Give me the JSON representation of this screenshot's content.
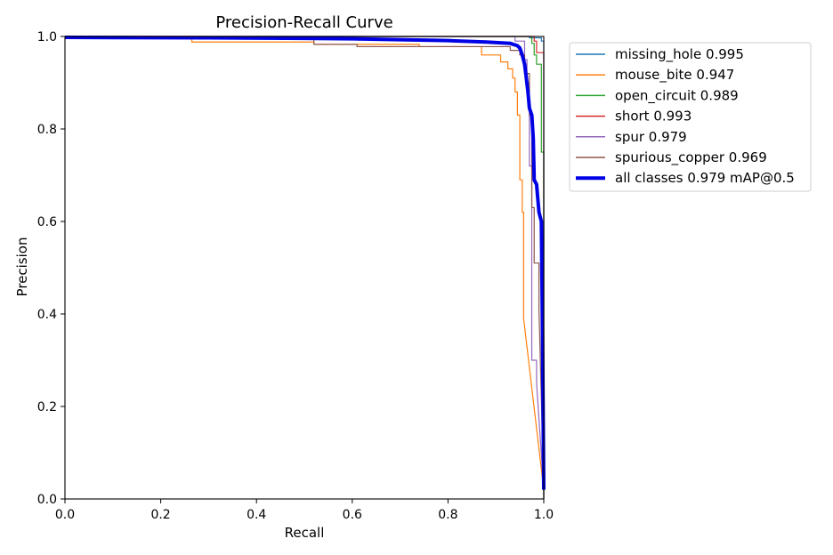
{
  "chart_data": {
    "type": "line",
    "title": "Precision-Recall Curve",
    "xlabel": "Recall",
    "ylabel": "Precision",
    "xlim": [
      0,
      1
    ],
    "ylim": [
      0,
      1
    ],
    "xticks": [
      "0.0",
      "0.2",
      "0.4",
      "0.6",
      "0.8",
      "1.0"
    ],
    "yticks": [
      "0.0",
      "0.2",
      "0.4",
      "0.6",
      "0.8",
      "1.0"
    ],
    "grid": false,
    "legend_position": "outside-right-top",
    "series": [
      {
        "name": "missing_hole 0.995",
        "color": "#1f77b4",
        "width": 1.2,
        "points": [
          [
            0,
            1
          ],
          [
            0.97,
            1
          ],
          [
            0.97,
            0.997
          ],
          [
            0.995,
            0.997
          ],
          [
            0.995,
            0.99
          ],
          [
            1.0,
            0.99
          ],
          [
            1.0,
            0
          ]
        ]
      },
      {
        "name": "mouse_bite 0.947",
        "color": "#ff7f0e",
        "width": 1.2,
        "points": [
          [
            0,
            1
          ],
          [
            0.265,
            1
          ],
          [
            0.265,
            0.988
          ],
          [
            0.52,
            0.988
          ],
          [
            0.52,
            0.983
          ],
          [
            0.74,
            0.983
          ],
          [
            0.74,
            0.978
          ],
          [
            0.87,
            0.978
          ],
          [
            0.87,
            0.96
          ],
          [
            0.91,
            0.96
          ],
          [
            0.91,
            0.945
          ],
          [
            0.925,
            0.945
          ],
          [
            0.925,
            0.93
          ],
          [
            0.935,
            0.93
          ],
          [
            0.935,
            0.91
          ],
          [
            0.94,
            0.91
          ],
          [
            0.94,
            0.88
          ],
          [
            0.945,
            0.88
          ],
          [
            0.945,
            0.83
          ],
          [
            0.95,
            0.83
          ],
          [
            0.95,
            0.69
          ],
          [
            0.955,
            0.69
          ],
          [
            0.955,
            0.62
          ],
          [
            0.958,
            0.62
          ],
          [
            0.958,
            0.39
          ],
          [
            1.0,
            0.02
          ]
        ]
      },
      {
        "name": "open_circuit 0.989",
        "color": "#2ca02c",
        "width": 1.2,
        "points": [
          [
            0,
            1
          ],
          [
            0.975,
            1
          ],
          [
            0.975,
            0.985
          ],
          [
            0.98,
            0.985
          ],
          [
            0.98,
            0.96
          ],
          [
            0.985,
            0.96
          ],
          [
            0.985,
            0.94
          ],
          [
            0.995,
            0.94
          ],
          [
            0.995,
            0.75
          ],
          [
            1.0,
            0.75
          ],
          [
            1.0,
            0
          ]
        ]
      },
      {
        "name": "short 0.993",
        "color": "#d62728",
        "width": 1.2,
        "points": [
          [
            0,
            1
          ],
          [
            0.98,
            1
          ],
          [
            0.98,
            0.99
          ],
          [
            0.985,
            0.99
          ],
          [
            0.985,
            0.965
          ],
          [
            1.0,
            0.965
          ],
          [
            1.0,
            0
          ]
        ]
      },
      {
        "name": "spur 0.979",
        "color": "#9467bd",
        "width": 1.2,
        "points": [
          [
            0,
            1
          ],
          [
            0.94,
            1
          ],
          [
            0.94,
            0.99
          ],
          [
            0.96,
            0.99
          ],
          [
            0.96,
            0.95
          ],
          [
            0.965,
            0.95
          ],
          [
            0.965,
            0.9
          ],
          [
            0.97,
            0.9
          ],
          [
            0.97,
            0.72
          ],
          [
            0.975,
            0.72
          ],
          [
            0.975,
            0.3
          ],
          [
            0.985,
            0.3
          ],
          [
            0.985,
            0.25
          ],
          [
            1.0,
            0.02
          ]
        ]
      },
      {
        "name": "spurious_copper 0.969",
        "color": "#8c564b",
        "width": 1.2,
        "points": [
          [
            0,
            1
          ],
          [
            0.52,
            1
          ],
          [
            0.52,
            0.983
          ],
          [
            0.61,
            0.983
          ],
          [
            0.61,
            0.978
          ],
          [
            0.93,
            0.978
          ],
          [
            0.93,
            0.97
          ],
          [
            0.95,
            0.97
          ],
          [
            0.95,
            0.96
          ],
          [
            0.96,
            0.96
          ],
          [
            0.96,
            0.92
          ],
          [
            0.97,
            0.92
          ],
          [
            0.97,
            0.83
          ],
          [
            0.975,
            0.83
          ],
          [
            0.975,
            0.63
          ],
          [
            0.98,
            0.63
          ],
          [
            0.98,
            0.51
          ],
          [
            0.99,
            0.51
          ],
          [
            0.99,
            0.41
          ],
          [
            1.0,
            0.02
          ]
        ]
      },
      {
        "name": "all classes 0.979 mAP@0.5",
        "color": "#0000e5",
        "width": 4,
        "points": [
          [
            0,
            0.998
          ],
          [
            0.3,
            0.997
          ],
          [
            0.5,
            0.996
          ],
          [
            0.6,
            0.995
          ],
          [
            0.7,
            0.993
          ],
          [
            0.8,
            0.991
          ],
          [
            0.88,
            0.988
          ],
          [
            0.93,
            0.985
          ],
          [
            0.945,
            0.98
          ],
          [
            0.95,
            0.975
          ],
          [
            0.955,
            0.96
          ],
          [
            0.96,
            0.94
          ],
          [
            0.963,
            0.915
          ],
          [
            0.967,
            0.88
          ],
          [
            0.97,
            0.845
          ],
          [
            0.975,
            0.83
          ],
          [
            0.978,
            0.78
          ],
          [
            0.98,
            0.69
          ],
          [
            0.985,
            0.68
          ],
          [
            0.99,
            0.62
          ],
          [
            0.995,
            0.6
          ],
          [
            0.997,
            0.4
          ],
          [
            1.0,
            0.02
          ]
        ]
      }
    ]
  }
}
